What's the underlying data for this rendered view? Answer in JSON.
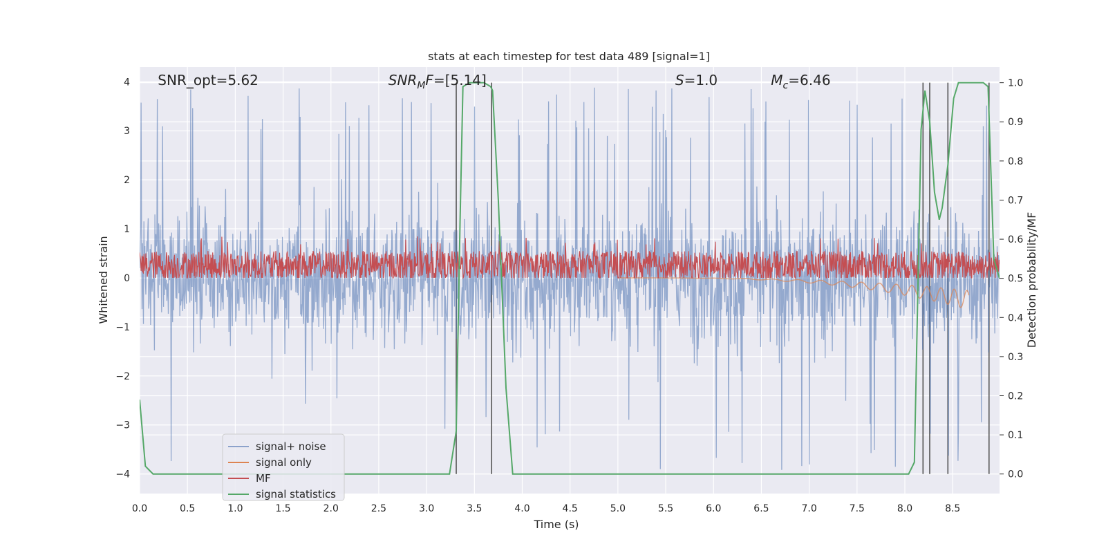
{
  "chart_data": {
    "type": "line",
    "title": "stats at each timestep for test data 489 [signal=1]",
    "xlabel": "Time (s)",
    "ylabel_left": "Whitened strain",
    "ylabel_right": "Detection probability/MF",
    "xlim": [
      0.0,
      8.99
    ],
    "ylim_left": [
      -4.4,
      4.3
    ],
    "ylim_right": [
      -0.05,
      1.04
    ],
    "xticks": [
      "0.0",
      "0.5",
      "1.0",
      "1.5",
      "2.0",
      "2.5",
      "3.0",
      "3.5",
      "4.0",
      "4.5",
      "5.0",
      "5.5",
      "6.0",
      "6.5",
      "7.0",
      "7.5",
      "8.0",
      "8.5"
    ],
    "yticks_left": [
      "4",
      "3",
      "2",
      "1",
      "0",
      "−1",
      "−2",
      "−3",
      "−4"
    ],
    "yticks_right": [
      "1.0",
      "0.9",
      "0.8",
      "0.7",
      "0.6",
      "0.5",
      "0.4",
      "0.3",
      "0.2",
      "0.1",
      "0.0"
    ],
    "grid": true,
    "legend_position": "lower-left",
    "annotations": [
      {
        "text": "SNR_opt=5.62",
        "x": 0.19
      },
      {
        "text": "SNRMF=[5.14]",
        "x": 2.6
      },
      {
        "text": "S=1.0",
        "x": 5.6
      },
      {
        "text": "Mc=6.46",
        "x": 6.6
      }
    ],
    "series": [
      {
        "name": "signal+ noise",
        "color": "#4c72b0",
        "axis": "left",
        "kind": "noise",
        "typical_range": [
          -2.0,
          2.6
        ],
        "extremes": [
          -4.0,
          3.9
        ]
      },
      {
        "name": "signal only",
        "color": "#dd8452",
        "axis": "left",
        "kind": "chirp",
        "x_start": 5.0,
        "x_end": 8.67,
        "min_at_end": -0.65
      },
      {
        "name": "MF",
        "color": "#c44e52",
        "axis": "left",
        "kind": "noise",
        "typical_range": [
          0.0,
          0.6
        ],
        "extremes": [
          0.0,
          0.85
        ]
      },
      {
        "name": "signal statistics",
        "color": "#55a868",
        "axis": "right",
        "x": [
          0.0,
          0.06,
          0.14,
          0.3,
          3.24,
          3.31,
          3.35,
          3.38,
          3.45,
          3.6,
          3.67,
          3.69,
          3.75,
          3.83,
          3.9,
          8.04,
          8.1,
          8.17,
          8.21,
          8.26,
          8.31,
          8.36,
          8.39,
          8.45,
          8.51,
          8.56,
          8.63,
          8.73,
          8.82,
          8.87,
          8.93,
          8.99
        ],
        "values": [
          0.19,
          0.02,
          0.0,
          0.0,
          0.0,
          0.11,
          0.65,
          0.99,
          1.0,
          1.0,
          0.99,
          0.98,
          0.7,
          0.22,
          0.0,
          0.0,
          0.03,
          0.88,
          0.98,
          0.9,
          0.72,
          0.65,
          0.68,
          0.79,
          0.96,
          1.0,
          1.0,
          1.0,
          1.0,
          0.99,
          0.55,
          0.5
        ]
      }
    ],
    "vlines": [
      3.31,
      3.68,
      8.19,
      8.26,
      8.45,
      8.88
    ],
    "vline_color": "#555555"
  }
}
